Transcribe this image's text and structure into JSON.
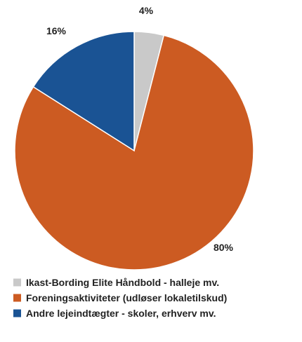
{
  "chart_data": {
    "type": "pie",
    "title": "",
    "slices": [
      {
        "label": "Ikast-Bording Elite Håndbold - halleje mv.",
        "value": 4,
        "value_label": "4%",
        "color": "#c9c9c9"
      },
      {
        "label": "Foreningsaktiviteter (udløser lokaletilskud)",
        "value": 80,
        "value_label": "80%",
        "color": "#cc5b22"
      },
      {
        "label": "Andre lejeindtægter - skoler, erhverv mv.",
        "value": 16,
        "value_label": "16%",
        "color": "#1a5394"
      }
    ],
    "legend_position": "bottom",
    "start_angle": "12 o'clock",
    "direction": "clockwise"
  }
}
